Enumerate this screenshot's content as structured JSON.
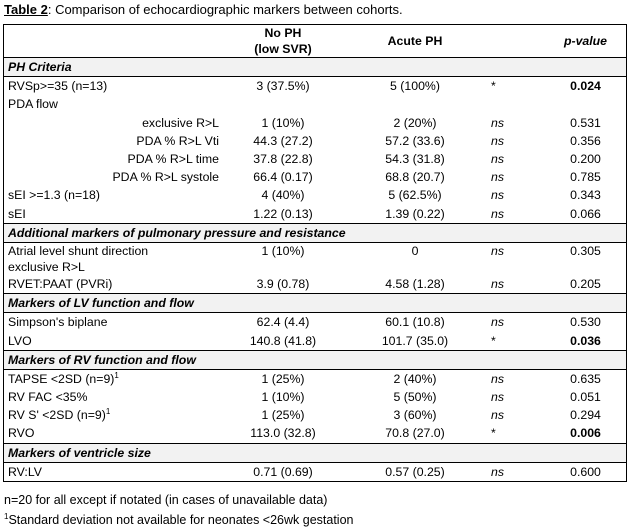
{
  "caption": {
    "label": "Table 2",
    "text": ": Comparison of echocardiographic markers between cohorts."
  },
  "headers": {
    "no_ph_line1": "No PH",
    "no_ph_line2": "(low SVR)",
    "acute_ph": "Acute PH",
    "p_value": "p-value"
  },
  "sections": {
    "s1": "PH Criteria",
    "s2": "Additional markers of pulmonary pressure and resistance",
    "s3": "Markers of LV function and flow",
    "s4": "Markers of RV function and flow",
    "s5": "Markers of ventricle size"
  },
  "rows": {
    "rvsp": {
      "label": "RVSp>=35 (n=13)",
      "no_ph": "3 (37.5%)",
      "acute": "5 (100%)",
      "sig": "*",
      "p": "0.024"
    },
    "pda": {
      "label": "PDA flow"
    },
    "exclusive": {
      "label": "exclusive R>L",
      "no_ph": "1 (10%)",
      "acute": "2 (20%)",
      "sig": "ns",
      "p": "0.531"
    },
    "vti": {
      "label": "PDA % R>L Vti",
      "no_ph": "44.3 (27.2)",
      "acute": "57.2 (33.6)",
      "sig": "ns",
      "p": "0.356"
    },
    "time": {
      "label": "PDA % R>L time",
      "no_ph": "37.8 (22.8)",
      "acute": "54.3 (31.8)",
      "sig": "ns",
      "p": "0.200"
    },
    "systole": {
      "label": "PDA % R>L systole",
      "no_ph": "66.4 (0.17)",
      "acute": "68.8 (20.7)",
      "sig": "ns",
      "p": "0.785"
    },
    "sei13": {
      "label": "sEI >=1.3 (n=18)",
      "no_ph": "4 (40%)",
      "acute": "5 (62.5%)",
      "sig": "ns",
      "p": "0.343"
    },
    "sei": {
      "label": "sEI",
      "no_ph": "1.22 (0.13)",
      "acute": "1.39 (0.22)",
      "sig": "ns",
      "p": "0.066"
    },
    "atrial": {
      "label_line1": "Atrial level shunt direction",
      "label_line2": "exclusive R>L",
      "no_ph": "1 (10%)",
      "acute": "0",
      "sig": "ns",
      "p": "0.305"
    },
    "rvet": {
      "label": "RVET:PAAT (PVRi)",
      "no_ph": "3.9 (0.78)",
      "acute": "4.58 (1.28)",
      "sig": "ns",
      "p": "0.205"
    },
    "simpson": {
      "label": "Simpson's biplane",
      "no_ph": "62.4 (4.4)",
      "acute": "60.1 (10.8)",
      "sig": "ns",
      "p": "0.530"
    },
    "lvo": {
      "label": "LVO",
      "no_ph": "140.8 (41.8)",
      "acute": "101.7 (35.0)",
      "sig": "*",
      "p": "0.036"
    },
    "tapse": {
      "label": "TAPSE <2SD (n=9)",
      "sup": "1",
      "no_ph": "1 (25%)",
      "acute": "2 (40%)",
      "sig": "ns",
      "p": "0.635"
    },
    "rvfac": {
      "label": "RV FAC <35%",
      "no_ph": "1 (10%)",
      "acute": "5 (50%)",
      "sig": "ns",
      "p": "0.051"
    },
    "rvs": {
      "label": "RV S' <2SD (n=9)",
      "sup": "1",
      "no_ph": "1 (25%)",
      "acute": "3 (60%)",
      "sig": "ns",
      "p": "0.294"
    },
    "rvo": {
      "label": "RVO",
      "no_ph": "113.0 (32.8)",
      "acute": "70.8 (27.0)",
      "sig": "*",
      "p": "0.006"
    },
    "rvlv": {
      "label": "RV:LV",
      "no_ph": "0.71 (0.69)",
      "acute": "0.57 (0.25)",
      "sig": "ns",
      "p": "0.600"
    }
  },
  "footnotes": {
    "n20": "n=20 for all except if notated (in cases of unavailable data)",
    "sup": "1",
    "sd": "Standard deviation not available for neonates <26wk gestation"
  }
}
